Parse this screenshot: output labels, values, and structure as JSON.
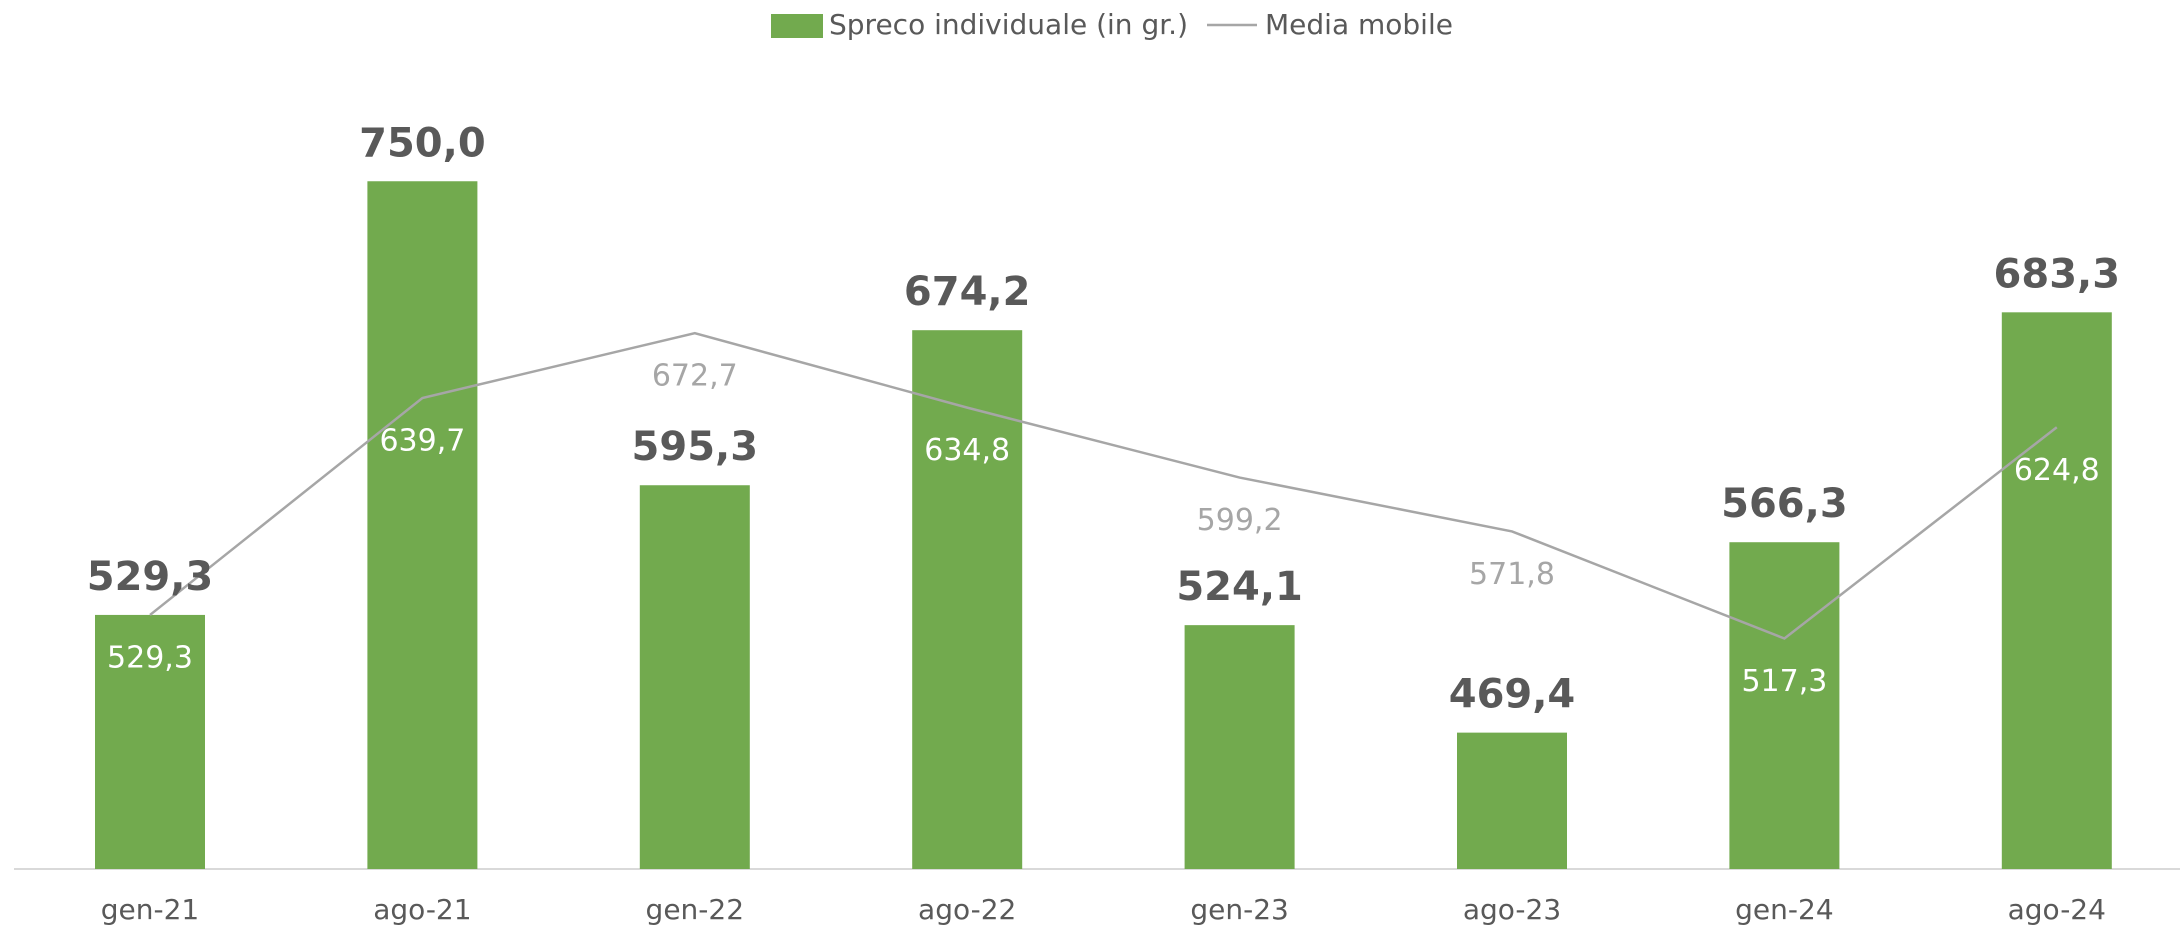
{
  "chart_data": {
    "type": "bar",
    "categories": [
      "gen-21",
      "ago-21",
      "gen-22",
      "ago-22",
      "gen-23",
      "ago-23",
      "gen-24",
      "ago-24"
    ],
    "series": [
      {
        "name": "Spreco individuale (in gr.)",
        "type": "bar",
        "color": "#72aa4e",
        "values": [
          529.3,
          750.0,
          595.3,
          674.2,
          524.1,
          469.4,
          566.3,
          683.3
        ],
        "value_labels": [
          "529,3",
          "750,0",
          "595,3",
          "674,2",
          "524,1",
          "469,4",
          "566,3",
          "683,3"
        ]
      },
      {
        "name": "Media mobile",
        "type": "line",
        "color": "#a6a6a6",
        "values": [
          529.3,
          639.7,
          672.7,
          634.8,
          599.2,
          571.8,
          517.3,
          624.8
        ],
        "value_labels": [
          "529,3",
          "639,7",
          "672,7",
          "634,8",
          "599,2",
          "571,8",
          "517,3",
          "624,8"
        ]
      }
    ],
    "ylim": [
      400,
      800
    ],
    "legend": "top"
  }
}
